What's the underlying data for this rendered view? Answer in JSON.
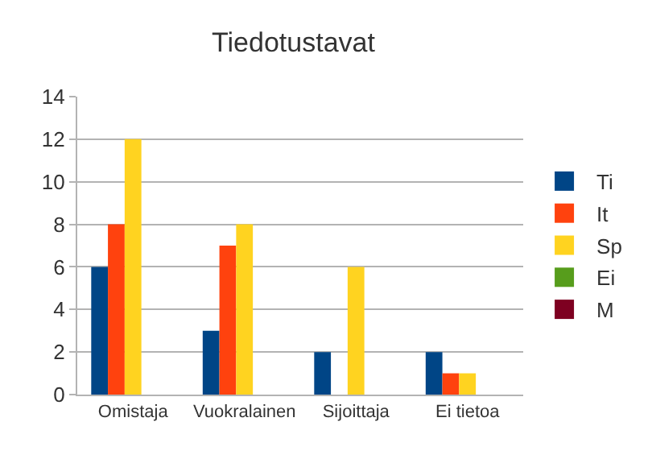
{
  "chart_data": {
    "type": "bar",
    "title": "Tiedotustavat",
    "categories": [
      "Omistaja",
      "Vuokralainen",
      "Sijoittaja",
      "Ei tietoa"
    ],
    "series": [
      {
        "name": "Ti",
        "color": "#004586",
        "values": [
          6,
          3,
          2,
          2
        ]
      },
      {
        "name": "It",
        "color": "#ff420e",
        "values": [
          8,
          7,
          0,
          1
        ]
      },
      {
        "name": "Sp",
        "color": "#ffd320",
        "values": [
          12,
          8,
          6,
          1
        ]
      },
      {
        "name": "Ei",
        "color": "#579d1c",
        "values": [
          0,
          0,
          0,
          0
        ]
      },
      {
        "name": "M",
        "color": "#7e0021",
        "values": [
          0,
          0,
          0,
          0
        ]
      }
    ],
    "ylim": [
      0,
      14
    ],
    "yticks": [
      0,
      2,
      4,
      6,
      8,
      10,
      12,
      14
    ],
    "grid": "y",
    "legend": "right"
  }
}
